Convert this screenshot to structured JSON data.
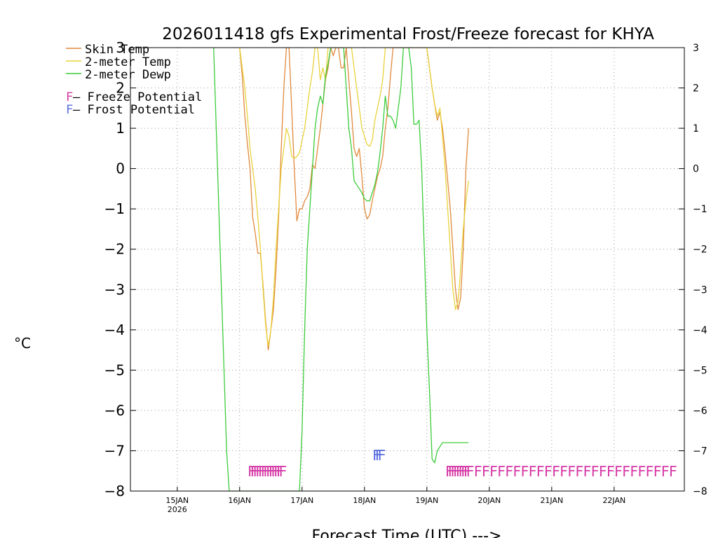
{
  "chart_data": {
    "type": "line",
    "title": "2026011418 gfs Experimental Frost/Freeze forecast for KHYA",
    "xlabel": "Forecast Time (UTC) --->",
    "ylabel": "°C",
    "ylim": [
      -8,
      3
    ],
    "xlim_hours": [
      -18,
      195
    ],
    "grid": true,
    "y_ticks": [
      {
        "value": 3,
        "label": "3"
      },
      {
        "value": 2,
        "label": "2"
      },
      {
        "value": 1,
        "label": "1"
      },
      {
        "value": 0,
        "label": "0"
      },
      {
        "value": -1,
        "label": "−1"
      },
      {
        "value": -2,
        "label": "−2"
      },
      {
        "value": -3,
        "label": "−3"
      },
      {
        "value": -4,
        "label": "−4"
      },
      {
        "value": -5,
        "label": "−5"
      },
      {
        "value": -6,
        "label": "−6"
      },
      {
        "value": -7,
        "label": "−7"
      },
      {
        "value": -8,
        "label": "−8"
      }
    ],
    "x_ticks": [
      {
        "hour": 0,
        "label": "15JAN",
        "sublabel": "2026"
      },
      {
        "hour": 24,
        "label": "16JAN"
      },
      {
        "hour": 48,
        "label": "17JAN"
      },
      {
        "hour": 72,
        "label": "18JAN"
      },
      {
        "hour": 96,
        "label": "19JAN"
      },
      {
        "hour": 120,
        "label": "20JAN"
      },
      {
        "hour": 144,
        "label": "21JAN"
      },
      {
        "hour": 168,
        "label": "22JAN"
      }
    ],
    "legend": {
      "position": "top-left",
      "line_entries": [
        {
          "label": "Skin Temp",
          "color": "#e08a3c"
        },
        {
          "label": "2-meter Temp",
          "color": "#e8d23c"
        },
        {
          "label": "2-meter Dewp",
          "color": "#3ccc3c"
        }
      ],
      "marker_entries": [
        {
          "glyph": "F",
          "label": " – Freeze Potential",
          "color": "#d63aa6"
        },
        {
          "glyph": "F",
          "label": " – Frost Potential",
          "color": "#5a6ee0"
        }
      ]
    },
    "series": [
      {
        "name": "Skin Temp",
        "color": "#e08a3c",
        "x": [
          24,
          25,
          26,
          27,
          28,
          29,
          30,
          31,
          32,
          33,
          34,
          35,
          36,
          37,
          38,
          39,
          40,
          41,
          42,
          43,
          44,
          45,
          46,
          47,
          48,
          49,
          50,
          51,
          52,
          53,
          54,
          55,
          56,
          57,
          58,
          59,
          60,
          61,
          62,
          63,
          64,
          65,
          66,
          67,
          68,
          69,
          70,
          71,
          72,
          73,
          74,
          75,
          76,
          77,
          78,
          79,
          80,
          81,
          82,
          83,
          84,
          85,
          86,
          87,
          88,
          89,
          90,
          91,
          92,
          93,
          94,
          95,
          96,
          97,
          98,
          99,
          100,
          101,
          102,
          103,
          104,
          105,
          106,
          107,
          108,
          109,
          110,
          111,
          112
        ],
        "values": [
          3.0,
          2.3,
          1.3,
          0.6,
          0.0,
          -1.2,
          -1.6,
          -2.1,
          -2.1,
          -2.9,
          -3.8,
          -4.5,
          -4.0,
          -3.5,
          -2.5,
          -1.2,
          0.5,
          2.0,
          3.0,
          3.0,
          1.5,
          0.0,
          -1.3,
          -1.0,
          -1.0,
          -0.8,
          -0.7,
          -0.5,
          0.1,
          0.0,
          0.5,
          1.0,
          1.6,
          2.2,
          2.5,
          3.0,
          2.8,
          3.0,
          3.0,
          2.5,
          2.5,
          3.0,
          2.2,
          1.4,
          0.5,
          0.3,
          0.5,
          -0.2,
          -1.0,
          -1.25,
          -1.15,
          -0.8,
          -0.5,
          -0.2,
          0.0,
          0.3,
          1.0,
          1.5,
          2.3,
          3.0,
          3.0,
          3.0,
          3.0,
          3.0,
          3.0,
          3.0,
          3.0,
          3.0,
          3.0,
          3.0,
          3.0,
          3.0,
          3.0,
          2.5,
          2.0,
          1.6,
          1.2,
          1.4,
          1.0,
          0.4,
          -0.3,
          -1.0,
          -2.0,
          -3.0,
          -3.5,
          -3.2,
          -2.0,
          0.0,
          1.0
        ]
      },
      {
        "name": "2-meter Temp",
        "color": "#e8d23c",
        "x": [
          24,
          25,
          26,
          27,
          28,
          29,
          30,
          31,
          32,
          33,
          34,
          35,
          36,
          37,
          38,
          39,
          40,
          41,
          42,
          43,
          44,
          45,
          46,
          47,
          48,
          49,
          50,
          51,
          52,
          53,
          54,
          55,
          56,
          57,
          58,
          59,
          60,
          61,
          62,
          63,
          64,
          65,
          66,
          67,
          68,
          69,
          70,
          71,
          72,
          73,
          74,
          75,
          76,
          77,
          78,
          79,
          80,
          81,
          82,
          83,
          84,
          85,
          86,
          87,
          88,
          89,
          90,
          91,
          92,
          93,
          94,
          95,
          96,
          97,
          98,
          99,
          100,
          101,
          102,
          103,
          104,
          105,
          106,
          107,
          108,
          109,
          110,
          111,
          112
        ],
        "values": [
          3.0,
          2.5,
          2.0,
          1.3,
          0.5,
          0.0,
          -0.5,
          -1.2,
          -2.0,
          -3.0,
          -3.9,
          -4.4,
          -4.0,
          -3.2,
          -2.0,
          -1.0,
          0.0,
          0.5,
          1.0,
          0.8,
          0.3,
          0.25,
          0.3,
          0.4,
          0.7,
          1.0,
          1.5,
          2.0,
          2.4,
          3.0,
          3.0,
          2.2,
          2.5,
          2.2,
          3.0,
          3.0,
          3.0,
          3.0,
          3.0,
          3.0,
          3.0,
          3.0,
          3.0,
          3.0,
          2.5,
          2.0,
          1.5,
          1.0,
          0.8,
          0.6,
          0.55,
          0.7,
          1.2,
          1.5,
          1.8,
          2.2,
          3.0,
          3.0,
          3.0,
          3.0,
          3.0,
          3.0,
          3.0,
          3.0,
          3.0,
          3.0,
          3.0,
          3.0,
          3.0,
          3.0,
          3.0,
          3.0,
          3.0,
          2.5,
          2.0,
          1.6,
          1.3,
          1.5,
          0.8,
          0.0,
          -1.0,
          -2.0,
          -3.0,
          -3.5,
          -3.3,
          -2.5,
          -1.5,
          -0.8,
          -0.3
        ]
      },
      {
        "name": "2-meter Dewp",
        "color": "#3ccc3c",
        "x": [
          14,
          15,
          16,
          17,
          18,
          19,
          20,
          21,
          22,
          23,
          24,
          47,
          48,
          49,
          50,
          51,
          52,
          53,
          54,
          55,
          56,
          57,
          58,
          59,
          60,
          61,
          62,
          63,
          64,
          65,
          66,
          67,
          68,
          69,
          70,
          71,
          72,
          73,
          74,
          75,
          76,
          77,
          78,
          79,
          80,
          81,
          82,
          83,
          84,
          85,
          86,
          87,
          88,
          89,
          90,
          91,
          92,
          93,
          94,
          95,
          96,
          97,
          98,
          99,
          100,
          101,
          102,
          103,
          104,
          105,
          106,
          107,
          108,
          109,
          110,
          111,
          112
        ],
        "values": [
          3.0,
          1.0,
          -1.0,
          -3.0,
          -5.0,
          -7.0,
          -8.0,
          -8.0,
          -8.0,
          -8.0,
          -8.0,
          -8.0,
          -6.5,
          -4.0,
          -2.0,
          -1.0,
          0.0,
          1.0,
          1.5,
          1.8,
          1.6,
          2.3,
          2.6,
          3.0,
          3.0,
          3.0,
          3.0,
          3.0,
          3.0,
          2.0,
          1.0,
          0.5,
          -0.3,
          -0.4,
          -0.5,
          -0.6,
          -0.75,
          -0.8,
          -0.8,
          -0.6,
          -0.4,
          -0.1,
          0.4,
          1.0,
          1.8,
          1.3,
          1.3,
          1.2,
          1.0,
          1.5,
          2.0,
          3.0,
          3.0,
          3.0,
          2.5,
          1.1,
          1.1,
          1.2,
          0.0,
          -2.0,
          -4.0,
          -5.5,
          -7.2,
          -7.3,
          -7.0,
          -6.9,
          -6.8,
          -6.8,
          -6.8,
          -6.8,
          -6.8,
          -6.8,
          -6.8,
          -6.8,
          -6.8,
          -6.8,
          -6.8
        ]
      }
    ],
    "markers": [
      {
        "type": "freeze",
        "glyph": "F",
        "color": "#d63aa6",
        "y": -7.5,
        "start_hour": 27,
        "end_hour": 39,
        "step_hours": 1
      },
      {
        "type": "frost",
        "glyph": "F",
        "color": "#5a6ee0",
        "y": -7.1,
        "start_hour": 75,
        "end_hour": 77,
        "step_hours": 1
      },
      {
        "type": "freeze",
        "glyph": "F",
        "color": "#d63aa6",
        "y": -7.5,
        "start_hour": 103,
        "end_hour": 111,
        "step_hours": 1
      },
      {
        "type": "freeze",
        "glyph": "F",
        "color": "#d63aa6",
        "y": -7.5,
        "start_hour": 114,
        "end_hour": 135,
        "step_hours": 3
      },
      {
        "type": "freeze",
        "glyph": "F",
        "color": "#d63aa6",
        "y": -7.5,
        "start_hour": 138,
        "end_hour": 189,
        "step_hours": 3
      }
    ]
  }
}
